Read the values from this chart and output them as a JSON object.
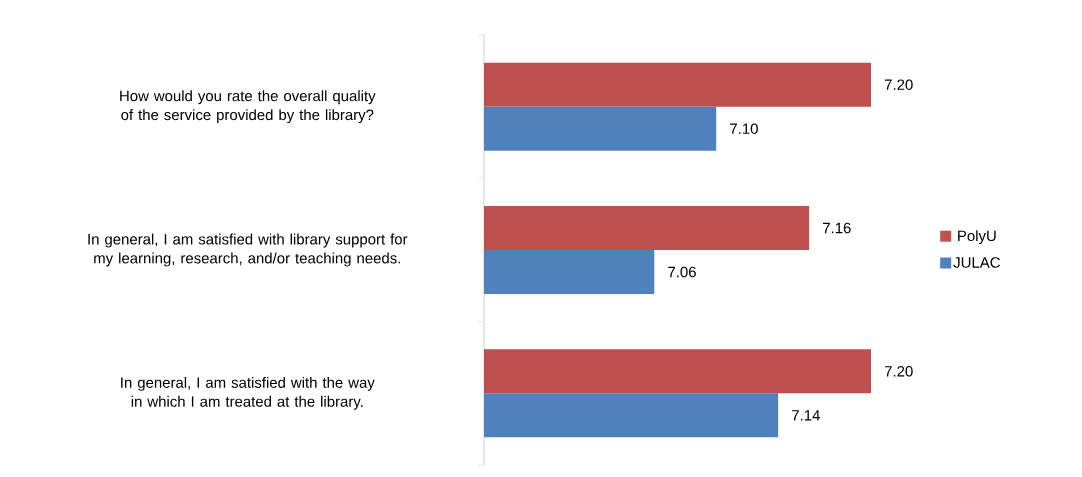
{
  "chart_data": {
    "type": "bar",
    "orientation": "horizontal",
    "categories": [
      "How would you rate the overall quality of the service provided by the library?",
      "In general, I am satisfied with library support for my learning, research, and/or teaching needs.",
      "In general, I am satisfied with the way in which I am treated at the library."
    ],
    "series": [
      {
        "name": "PolyU",
        "color": "#c0504d",
        "values": [
          7.2,
          7.16,
          7.2
        ],
        "value_labels": [
          "7.20",
          "7.16",
          "7.20"
        ]
      },
      {
        "name": "JULAC",
        "color": "#4f81bd",
        "values": [
          7.1,
          7.06,
          7.14
        ],
        "value_labels": [
          "7.10",
          "7.06",
          "7.14"
        ]
      }
    ],
    "xlim": [
      6.95,
      7.2
    ],
    "legend": "right",
    "tick_labels": "y"
  }
}
